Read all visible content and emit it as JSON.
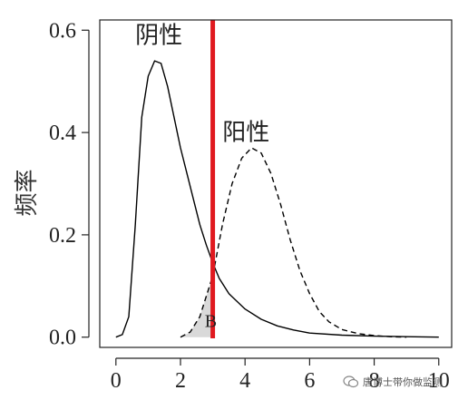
{
  "chart_data": {
    "type": "line",
    "xlabel": "",
    "ylabel": "频率",
    "xlim": [
      -0.5,
      10.4
    ],
    "ylim": [
      -0.02,
      0.62
    ],
    "xticks": [
      0,
      2,
      4,
      6,
      8,
      10
    ],
    "yticks": [
      0.0,
      0.2,
      0.4,
      0.6
    ],
    "ytick_labels": [
      "0.0",
      "0.2",
      "0.4",
      "0.6"
    ],
    "grid": false,
    "series": [
      {
        "name": "阴性",
        "style": "solid",
        "color": "#000000",
        "x": [
          0.0,
          0.2,
          0.4,
          0.6,
          0.8,
          1.0,
          1.2,
          1.4,
          1.6,
          1.8,
          2.0,
          2.2,
          2.4,
          2.6,
          2.8,
          3.0,
          3.2,
          3.5,
          4.0,
          4.5,
          5.0,
          5.5,
          6.0,
          7.0,
          8.0,
          9.0,
          10.0
        ],
        "y": [
          0.0,
          0.005,
          0.04,
          0.22,
          0.43,
          0.51,
          0.54,
          0.535,
          0.49,
          0.43,
          0.37,
          0.32,
          0.27,
          0.22,
          0.18,
          0.145,
          0.115,
          0.085,
          0.055,
          0.035,
          0.022,
          0.014,
          0.008,
          0.004,
          0.002,
          0.001,
          0.0
        ]
      },
      {
        "name": "阳性",
        "style": "dashed",
        "color": "#000000",
        "x": [
          2.0,
          2.3,
          2.6,
          3.0,
          3.3,
          3.6,
          3.9,
          4.2,
          4.5,
          4.8,
          5.1,
          5.4,
          5.7,
          6.0,
          6.3,
          6.6,
          7.0,
          7.5,
          8.0,
          8.5,
          9.0
        ],
        "y": [
          0.0,
          0.01,
          0.04,
          0.12,
          0.22,
          0.3,
          0.35,
          0.37,
          0.36,
          0.32,
          0.26,
          0.19,
          0.13,
          0.085,
          0.05,
          0.03,
          0.015,
          0.007,
          0.003,
          0.001,
          0.0
        ]
      }
    ],
    "threshold": {
      "x": 3.0,
      "color": "#e0191f"
    },
    "shaded_region": {
      "label": "B",
      "x_from": 2.0,
      "x_to": 3.0,
      "fill": "#d9d9d9"
    },
    "annotations": [
      {
        "text": "阴性",
        "x": 0.6,
        "y": 0.575
      },
      {
        "text": "阳性",
        "x": 3.3,
        "y": 0.385
      },
      {
        "text": "B",
        "x": 2.75,
        "y": 0.02
      }
    ]
  },
  "watermark": {
    "text": "唐博士带你做监测"
  }
}
